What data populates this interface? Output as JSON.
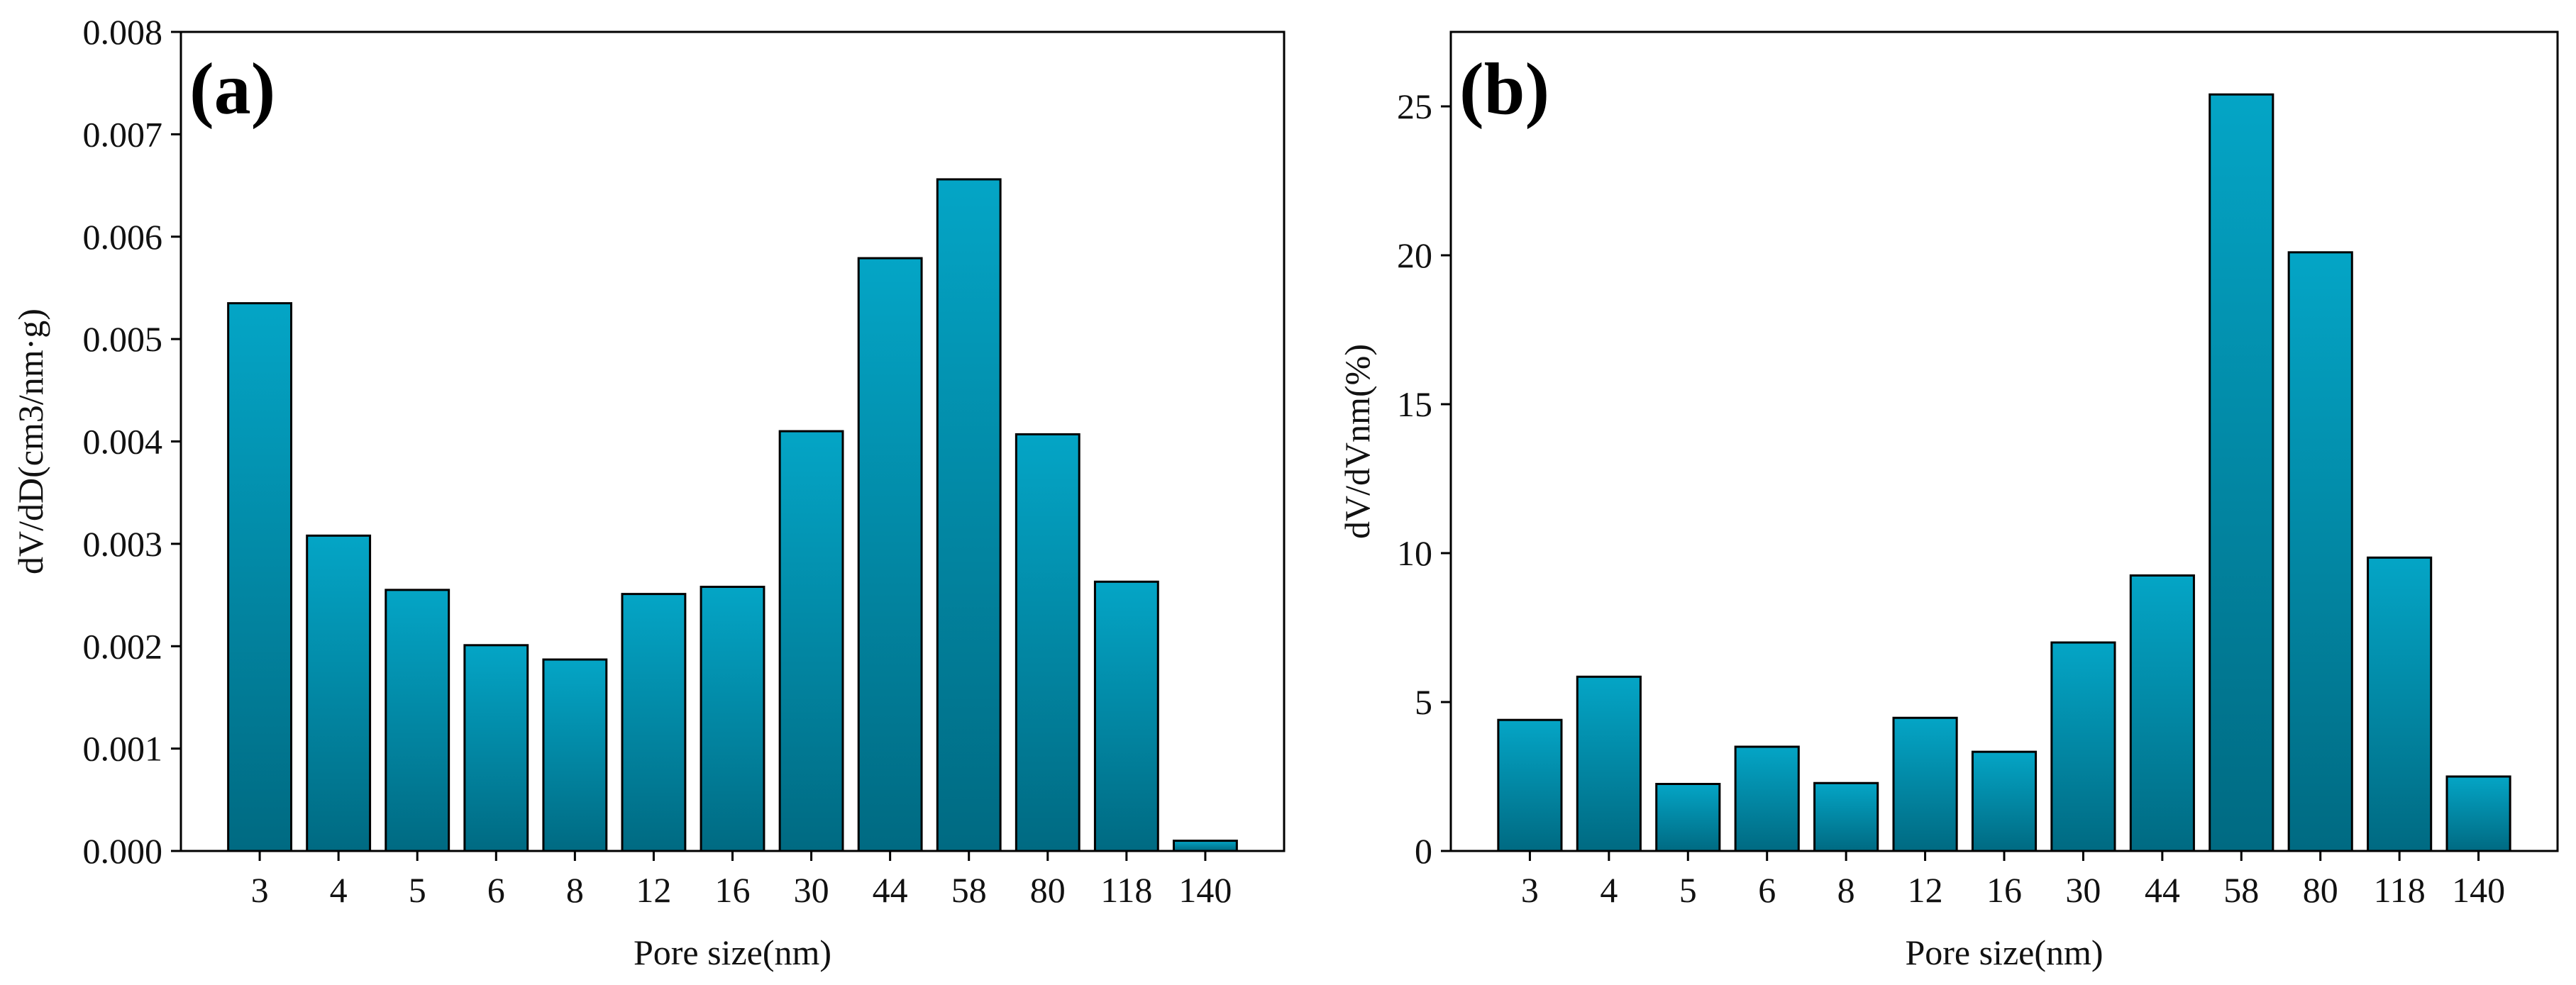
{
  "colors": {
    "bar_top": "#04a5c6",
    "bar_bottom": "#006a82",
    "axis": "#000000"
  },
  "chart_data": [
    {
      "type": "bar",
      "panel_label": "(a)",
      "categories": [
        "3",
        "4",
        "5",
        "6",
        "8",
        "12",
        "16",
        "30",
        "44",
        "58",
        "80",
        "118",
        "140"
      ],
      "values": [
        0.00535,
        0.00308,
        0.00255,
        0.00201,
        0.00187,
        0.00251,
        0.00258,
        0.0041,
        0.00579,
        0.00656,
        0.00407,
        0.00263,
        0.0001
      ],
      "xlabel": "Pore size(nm)",
      "ylabel": "dV/dD(cm3/nm·g)",
      "ylim": [
        0,
        0.008
      ],
      "yticks": [
        0,
        0.001,
        0.002,
        0.003,
        0.004,
        0.005,
        0.006,
        0.007,
        0.008
      ],
      "ytick_labels": [
        "0.000",
        "0.001",
        "0.002",
        "0.003",
        "0.004",
        "0.005",
        "0.006",
        "0.007",
        "0.008"
      ],
      "grid": false,
      "legend": "none"
    },
    {
      "type": "bar",
      "panel_label": "(b)",
      "categories": [
        "3",
        "4",
        "5",
        "6",
        "8",
        "12",
        "16",
        "30",
        "44",
        "58",
        "80",
        "118",
        "140"
      ],
      "values": [
        4.4,
        5.85,
        2.25,
        3.5,
        2.28,
        4.47,
        3.33,
        7.0,
        9.25,
        25.4,
        20.1,
        9.85,
        2.5
      ],
      "xlabel": "Pore size(nm)",
      "ylabel": "dV/dVnm(%)",
      "ylim": [
        0,
        27.5
      ],
      "yticks": [
        0,
        5,
        10,
        15,
        20,
        25
      ],
      "ytick_labels": [
        "0",
        "5",
        "10",
        "15",
        "20",
        "25"
      ],
      "grid": false,
      "legend": "none"
    }
  ]
}
